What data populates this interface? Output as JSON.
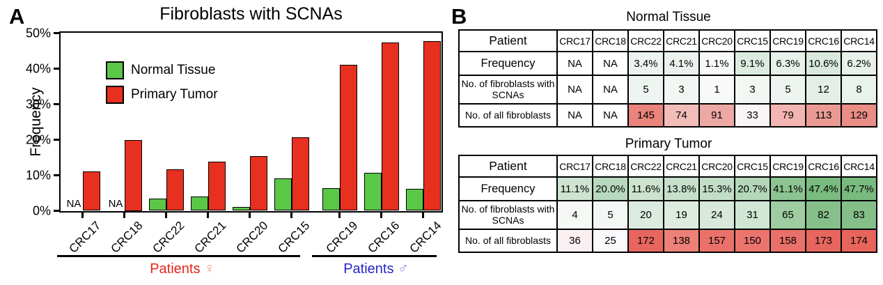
{
  "figure": {
    "panelA": {
      "label": "A",
      "na_label": "NA",
      "groups": [
        {
          "label": "Patients ",
          "symbol": "♀",
          "color": "#e8251c",
          "symbol_color": "#f2918d"
        },
        {
          "label": "Patients ",
          "symbol": "♂",
          "color": "#2525cd",
          "symbol_color": "#8d8de6"
        }
      ]
    },
    "panelB": {
      "label": "B",
      "tables": [
        {
          "title": "Normal Tissue",
          "header_label": "Patient",
          "patients": [
            "CRC17",
            "CRC18",
            "CRC22",
            "CRC21",
            "CRC20",
            "CRC15",
            "CRC19",
            "CRC16",
            "CRC14"
          ],
          "rows": [
            {
              "label": "Frequency",
              "values": [
                "NA",
                "NA",
                "3.4%",
                "4.1%",
                "1.1%",
                "9.1%",
                "6.3%",
                "10.6%",
                "6.2%"
              ],
              "colors": [
                "#ffffff",
                "#ffffff",
                "#ecf3ee",
                "#ebf2ed",
                "#f6f9f7",
                "#dcebe0",
                "#e7f0e9",
                "#d9e9dd",
                "#e7f0e9"
              ]
            },
            {
              "label": "No. of fibroblasts with SCNAs",
              "values": [
                "NA",
                "NA",
                "5",
                "3",
                "1",
                "3",
                "5",
                "12",
                "8"
              ],
              "colors": [
                "#ffffff",
                "#ffffff",
                "#eef4f0",
                "#f3f7f3",
                "#f8faf8",
                "#f3f7f3",
                "#eef4f0",
                "#e3eee5",
                "#eaf2ec"
              ]
            },
            {
              "label": "No. of all fibroblasts",
              "values": [
                "NA",
                "NA",
                "145",
                "74",
                "91",
                "33",
                "79",
                "113",
                "129"
              ],
              "colors": [
                "#ffffff",
                "#ffffff",
                "#e9837b",
                "#f2bcb9",
                "#eda8a3",
                "#faf4f5",
                "#f3b5b1",
                "#eb9a93",
                "#e98d85"
              ]
            }
          ]
        },
        {
          "title": "Primary Tumor",
          "header_label": "Patient",
          "patients": [
            "CRC17",
            "CRC18",
            "CRC22",
            "CRC21",
            "CRC20",
            "CRC15",
            "CRC19",
            "CRC16",
            "CRC14"
          ],
          "rows": [
            {
              "label": "Frequency",
              "values": [
                "11.1%",
                "20.0%",
                "11.6%",
                "13.8%",
                "15.3%",
                "20.7%",
                "41.1%",
                "47.4%",
                "47.7%"
              ],
              "colors": [
                "#cde4d1",
                "#b7d9bd",
                "#cbe3cf",
                "#c6e0cb",
                "#c2dec8",
                "#b4d7ba",
                "#8cc492",
                "#7abb80",
                "#79bb7f"
              ]
            },
            {
              "label": "No. of fibroblasts with SCNAs",
              "values": [
                "4",
                "5",
                "20",
                "19",
                "24",
                "31",
                "65",
                "82",
                "83"
              ],
              "colors": [
                "#f5f8f5",
                "#f4f8f5",
                "#dcebdf",
                "#ddecdf",
                "#d8e9db",
                "#d1e6d5",
                "#9dcda1",
                "#85c08b",
                "#84bf8a"
              ]
            },
            {
              "label": "No. of all fibroblasts",
              "values": [
                "36",
                "25",
                "172",
                "138",
                "157",
                "150",
                "158",
                "173",
                "174"
              ],
              "colors": [
                "#faeff1",
                "#fbf9fc",
                "#e7675e",
                "#ee8078",
                "#ea716a",
                "#eb756e",
                "#ea706a",
                "#e7665e",
                "#e7655d"
              ]
            }
          ]
        }
      ]
    }
  },
  "chart_data": {
    "type": "bar",
    "title": "Fibroblasts with SCNAs",
    "xlabel": "",
    "ylabel": "Frequency",
    "categories": [
      "CRC17",
      "CRC18",
      "CRC22",
      "CRC21",
      "CRC20",
      "CRC15",
      "CRC19",
      "CRC16",
      "CRC14"
    ],
    "series": [
      {
        "name": "Normal Tissue",
        "color": "#5ac746",
        "values": [
          null,
          null,
          3.4,
          4.1,
          1.1,
          9.1,
          6.3,
          10.6,
          6.2
        ]
      },
      {
        "name": "Primary Tumor",
        "color": "#e7301f",
        "values": [
          11.1,
          20.0,
          11.6,
          13.8,
          15.3,
          20.7,
          41.1,
          47.4,
          47.7
        ]
      }
    ],
    "na_categories": [
      "CRC17",
      "CRC18"
    ],
    "ylim": [
      0,
      50
    ],
    "yticks": [
      "0%",
      "10%",
      "20%",
      "30%",
      "40%",
      "50%"
    ],
    "grid": false,
    "legend_position": "upper-left-inside",
    "group_annotations": [
      {
        "label": "Patients ♀",
        "categories": [
          "CRC17",
          "CRC18",
          "CRC22",
          "CRC21",
          "CRC20",
          "CRC15"
        ]
      },
      {
        "label": "Patients ♂",
        "categories": [
          "CRC19",
          "CRC16",
          "CRC14"
        ]
      }
    ]
  }
}
